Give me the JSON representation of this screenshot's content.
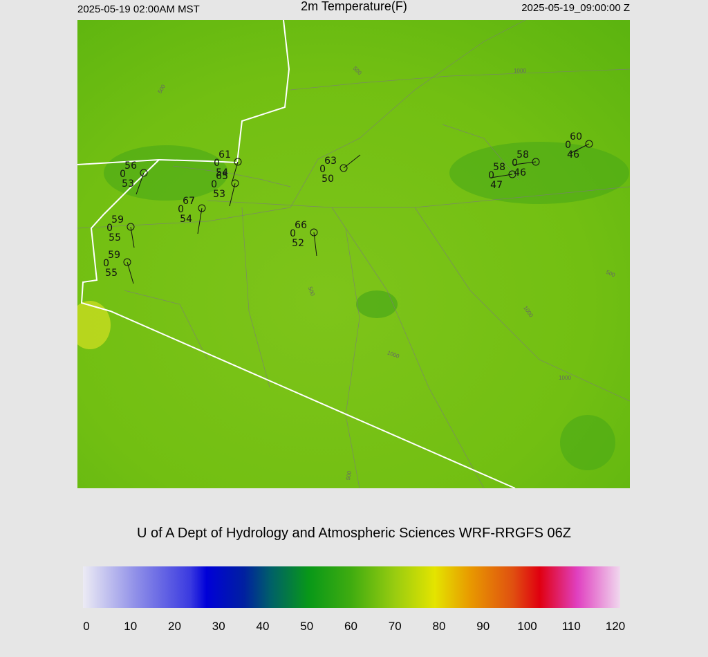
{
  "header": {
    "left": "2025-05-19 02:00AM MST",
    "title": "2m Temperature(F)",
    "right": "2025-05-19_09:00:00 Z"
  },
  "stations": [
    {
      "temp": 56,
      "cover": 0,
      "dew": 53
    },
    {
      "temp": 61,
      "cover": 0,
      "dew": 54
    },
    {
      "temp": 65,
      "cover": 0,
      "dew": 53
    },
    {
      "temp": 67,
      "cover": 0,
      "dew": 54
    },
    {
      "temp": 59,
      "cover": 0,
      "dew": 55
    },
    {
      "temp": 59,
      "cover": 0,
      "dew": 55
    },
    {
      "temp": 66,
      "cover": 0,
      "dew": 52
    },
    {
      "temp": 63,
      "cover": 0,
      "dew": 50
    },
    {
      "temp": 58,
      "cover": 0,
      "dew": 47
    },
    {
      "temp": 58,
      "cover": 0,
      "dew": 46
    },
    {
      "temp": 60,
      "cover": 0,
      "dew": 46
    }
  ],
  "contour_labels": [
    500,
    500,
    1000,
    500,
    1000,
    1000,
    1000,
    500,
    500
  ],
  "credit": "U of A Dept of Hydrology and Atmospheric Sciences WRF-RRGFS 06Z",
  "colorbar": {
    "range": [
      0,
      120
    ],
    "ticks": [
      0,
      10,
      20,
      30,
      40,
      50,
      60,
      70,
      80,
      90,
      100,
      110,
      120
    ]
  }
}
